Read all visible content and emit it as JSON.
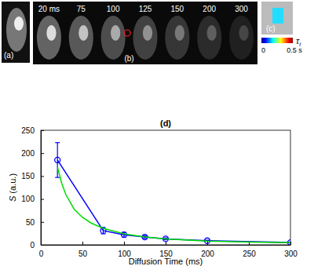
{
  "chart_data": {
    "type": "line",
    "title": "(d)",
    "x_label": "Diffusion Time (ms)",
    "y_label": "S (a.u.)",
    "xlim": [
      0,
      300
    ],
    "xticks": [
      0,
      50,
      100,
      150,
      200,
      250,
      300
    ],
    "ylim": [
      0,
      250
    ],
    "yticks": [
      0,
      50,
      100,
      150,
      200,
      250
    ],
    "grid": false,
    "series": [
      {
        "color": "#0000ff",
        "marker": "circle",
        "line_style": "solid",
        "x": [
          20,
          75,
          100,
          125,
          150,
          200,
          300
        ],
        "values": [
          185,
          31,
          22,
          17,
          13,
          9,
          5
        ],
        "errors": [
          38,
          7,
          5,
          3,
          2,
          1,
          1
        ]
      },
      {
        "color": "#00dd00",
        "marker": "none",
        "line_style": "solid",
        "x": [
          20,
          25,
          30,
          40,
          50,
          60,
          75,
          100,
          125,
          150,
          200,
          250,
          300
        ],
        "values": [
          170,
          135,
          110,
          78,
          60,
          48,
          36,
          24,
          17,
          13,
          8,
          6,
          4.5
        ]
      }
    ]
  },
  "panels": {
    "a": {
      "label": "(a)"
    },
    "b": {
      "label": "(b)",
      "times": [
        "20 ms",
        "75",
        "100",
        "125",
        "150",
        "200",
        "300"
      ]
    },
    "c": {
      "label": "(c)",
      "colorbar": {
        "label": "τi",
        "range": [
          0,
          0.5
        ],
        "ticks": [
          0,
          {
            "value": 0.5,
            "label": "0.5 s"
          }
        ]
      }
    }
  }
}
